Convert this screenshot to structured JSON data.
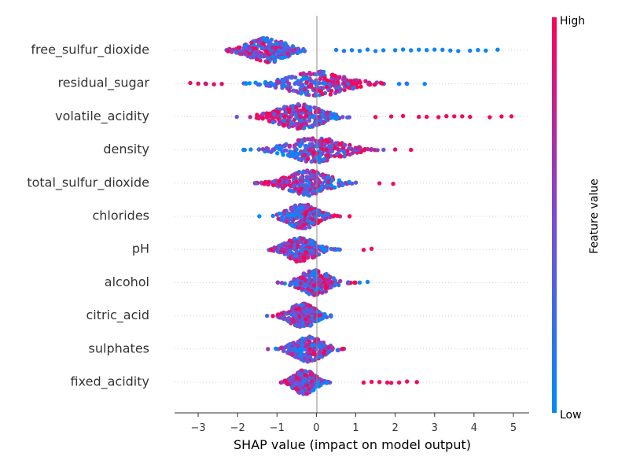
{
  "chart_data": {
    "type": "scatter",
    "subtype": "shap-beeswarm",
    "title": "",
    "xlabel": "SHAP value (impact on model output)",
    "xlim": [
      -3.6,
      5.4
    ],
    "xticks": [
      -3,
      -2,
      -1,
      0,
      1,
      2,
      3,
      4,
      5
    ],
    "xtick_labels": [
      "−3",
      "−2",
      "−1",
      "0",
      "1",
      "2",
      "3",
      "4",
      "5"
    ],
    "colorbar": {
      "label": "Feature value",
      "high_label": "High",
      "low_label": "Low",
      "high_color": "#ff0052",
      "low_color": "#008bfb"
    },
    "features": [
      {
        "name": "free_sulfur_dioxide",
        "min": -2.3,
        "max": 4.65,
        "center": -1.25,
        "spread": 0.45,
        "outliers": [
          {
            "x": 0.5,
            "v": 0.1
          },
          {
            "x": 0.7,
            "v": 0.15
          },
          {
            "x": 0.9,
            "v": 0.1
          },
          {
            "x": 1.1,
            "v": 0.05
          },
          {
            "x": 1.3,
            "v": 0.1
          },
          {
            "x": 1.5,
            "v": 0.1
          },
          {
            "x": 1.7,
            "v": 0.05
          },
          {
            "x": 2.0,
            "v": 0.05
          },
          {
            "x": 2.2,
            "v": 0.05
          },
          {
            "x": 2.4,
            "v": 0.05
          },
          {
            "x": 2.6,
            "v": 0.05
          },
          {
            "x": 2.8,
            "v": 0.05
          },
          {
            "x": 3.0,
            "v": 0.05
          },
          {
            "x": 3.2,
            "v": 0.05
          },
          {
            "x": 3.4,
            "v": 0.05
          },
          {
            "x": 3.6,
            "v": 0.05
          },
          {
            "x": 3.9,
            "v": 0.05
          },
          {
            "x": 4.1,
            "v": 0.05
          },
          {
            "x": 4.3,
            "v": 0.05
          },
          {
            "x": 4.6,
            "v": 0.05
          }
        ]
      },
      {
        "name": "residual_sugar",
        "min": -3.2,
        "max": 2.75,
        "center": 0.0,
        "spread": 0.7,
        "outliers": [
          {
            "x": -3.2,
            "v": 0.95
          },
          {
            "x": -3.0,
            "v": 0.95
          },
          {
            "x": -2.8,
            "v": 0.9
          },
          {
            "x": -2.6,
            "v": 0.95
          },
          {
            "x": -2.4,
            "v": 0.9
          },
          {
            "x": 2.1,
            "v": 0.05
          },
          {
            "x": 2.3,
            "v": 0.05
          },
          {
            "x": 2.75,
            "v": 0.05
          }
        ]
      },
      {
        "name": "volatile_acidity",
        "min": -2.5,
        "max": 4.95,
        "center": -0.45,
        "spread": 0.55,
        "outliers": [
          {
            "x": 1.5,
            "v": 0.95
          },
          {
            "x": 1.9,
            "v": 0.95
          },
          {
            "x": 2.2,
            "v": 0.95
          },
          {
            "x": 2.6,
            "v": 0.95
          },
          {
            "x": 2.8,
            "v": 0.95
          },
          {
            "x": 3.1,
            "v": 0.95
          },
          {
            "x": 3.3,
            "v": 0.95
          },
          {
            "x": 3.5,
            "v": 0.95
          },
          {
            "x": 3.7,
            "v": 0.95
          },
          {
            "x": 3.9,
            "v": 0.95
          },
          {
            "x": 4.4,
            "v": 0.95
          },
          {
            "x": 4.7,
            "v": 0.95
          },
          {
            "x": 4.95,
            "v": 0.95
          }
        ]
      },
      {
        "name": "density",
        "min": -1.85,
        "max": 2.45,
        "center": 0.0,
        "spread": 0.65,
        "outliers": [
          {
            "x": 2.4,
            "v": 0.95
          },
          {
            "x": 2.0,
            "v": 0.9
          },
          {
            "x": -1.85,
            "v": 0.05
          }
        ]
      },
      {
        "name": "total_sulfur_dioxide",
        "min": -1.6,
        "max": 1.95,
        "center": -0.2,
        "spread": 0.5,
        "outliers": [
          {
            "x": 1.95,
            "v": 0.95
          },
          {
            "x": 1.6,
            "v": 0.9
          }
        ]
      },
      {
        "name": "chlorides",
        "min": -1.6,
        "max": 1.4,
        "center": -0.35,
        "spread": 0.35,
        "outliers": []
      },
      {
        "name": "pH",
        "min": -1.25,
        "max": 1.4,
        "center": -0.4,
        "spread": 0.35,
        "outliers": [
          {
            "x": 1.4,
            "v": 0.95
          },
          {
            "x": 1.2,
            "v": 0.9
          }
        ]
      },
      {
        "name": "alcohol",
        "min": -1.8,
        "max": 1.3,
        "center": -0.05,
        "spread": 0.35,
        "outliers": [
          {
            "x": 1.3,
            "v": 0.05
          },
          {
            "x": 1.1,
            "v": 0.05
          }
        ]
      },
      {
        "name": "citric_acid",
        "min": -1.3,
        "max": 1.0,
        "center": -0.35,
        "spread": 0.3,
        "outliers": []
      },
      {
        "name": "sulphates",
        "min": -1.25,
        "max": 1.35,
        "center": -0.2,
        "spread": 0.35,
        "outliers": []
      },
      {
        "name": "fixed_acidity",
        "min": -0.9,
        "max": 2.55,
        "center": -0.3,
        "spread": 0.25,
        "outliers": [
          {
            "x": 1.2,
            "v": 0.95
          },
          {
            "x": 1.4,
            "v": 0.95
          },
          {
            "x": 1.6,
            "v": 0.95
          },
          {
            "x": 1.8,
            "v": 0.95
          },
          {
            "x": 1.9,
            "v": 0.9
          },
          {
            "x": 2.1,
            "v": 0.95
          },
          {
            "x": 2.3,
            "v": 0.95
          },
          {
            "x": 2.55,
            "v": 0.95
          }
        ]
      }
    ]
  }
}
